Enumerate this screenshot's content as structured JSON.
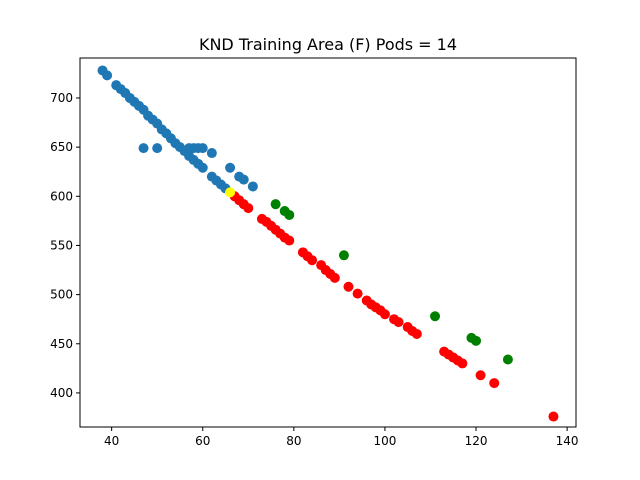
{
  "chart_data": {
    "type": "scatter",
    "title": "KND Training Area (F) Pods = 14",
    "xlabel": "",
    "ylabel": "",
    "xlim": [
      33.05,
      141.95
    ],
    "ylim": [
      365.35,
      740.65
    ],
    "xticks": [
      40,
      60,
      80,
      100,
      120,
      140
    ],
    "yticks": [
      400,
      450,
      500,
      550,
      600,
      650,
      700
    ],
    "grid": false,
    "legend": "none",
    "series": [
      {
        "color": "#1f77b4",
        "points": [
          [
            38,
            728
          ],
          [
            39,
            723
          ],
          [
            41,
            713
          ],
          [
            42,
            709
          ],
          [
            43,
            705
          ],
          [
            44,
            700
          ],
          [
            45,
            696
          ],
          [
            46,
            692
          ],
          [
            47,
            688
          ],
          [
            48,
            682
          ],
          [
            49,
            678
          ],
          [
            50,
            674
          ],
          [
            51,
            668
          ],
          [
            52,
            664
          ],
          [
            53,
            659
          ],
          [
            54,
            654
          ],
          [
            55,
            650
          ],
          [
            56,
            646
          ],
          [
            57,
            641
          ],
          [
            58,
            637
          ],
          [
            59,
            633
          ],
          [
            60,
            629
          ],
          [
            62,
            620
          ],
          [
            63,
            616
          ],
          [
            64,
            612
          ],
          [
            65,
            608
          ],
          [
            57,
            649
          ],
          [
            58,
            649
          ],
          [
            59,
            649
          ],
          [
            60,
            649
          ],
          [
            62,
            644
          ],
          [
            47,
            649
          ],
          [
            50,
            649
          ],
          [
            66,
            629
          ],
          [
            68,
            620
          ],
          [
            69,
            617
          ],
          [
            71,
            610
          ]
        ]
      },
      {
        "color": "#008000",
        "points": [
          [
            76,
            592
          ],
          [
            78,
            585
          ],
          [
            79,
            581
          ],
          [
            91,
            540
          ],
          [
            111,
            478
          ],
          [
            119,
            456
          ],
          [
            120,
            453
          ],
          [
            127,
            434
          ]
        ]
      },
      {
        "color": "#ff0000",
        "points": [
          [
            67,
            600
          ],
          [
            68,
            596
          ],
          [
            69,
            592
          ],
          [
            70,
            588
          ],
          [
            73,
            577
          ],
          [
            74,
            574
          ],
          [
            75,
            570
          ],
          [
            76,
            566
          ],
          [
            77,
            562
          ],
          [
            78,
            558
          ],
          [
            79,
            555
          ],
          [
            82,
            543
          ],
          [
            83,
            539
          ],
          [
            84,
            535
          ],
          [
            86,
            530
          ],
          [
            87,
            525
          ],
          [
            88,
            521
          ],
          [
            89,
            517
          ],
          [
            92,
            508
          ],
          [
            94,
            501
          ],
          [
            96,
            494
          ],
          [
            97,
            490
          ],
          [
            98,
            487
          ],
          [
            99,
            484
          ],
          [
            100,
            480
          ],
          [
            102,
            475
          ],
          [
            103,
            472
          ],
          [
            105,
            467
          ],
          [
            106,
            463
          ],
          [
            107,
            460
          ],
          [
            113,
            442
          ],
          [
            114,
            439
          ],
          [
            115,
            436
          ],
          [
            116,
            433
          ],
          [
            117,
            430
          ],
          [
            121,
            418
          ],
          [
            124,
            410
          ],
          [
            137,
            376
          ]
        ]
      },
      {
        "color": "#ffff00",
        "points": [
          [
            66,
            604
          ]
        ]
      }
    ]
  }
}
